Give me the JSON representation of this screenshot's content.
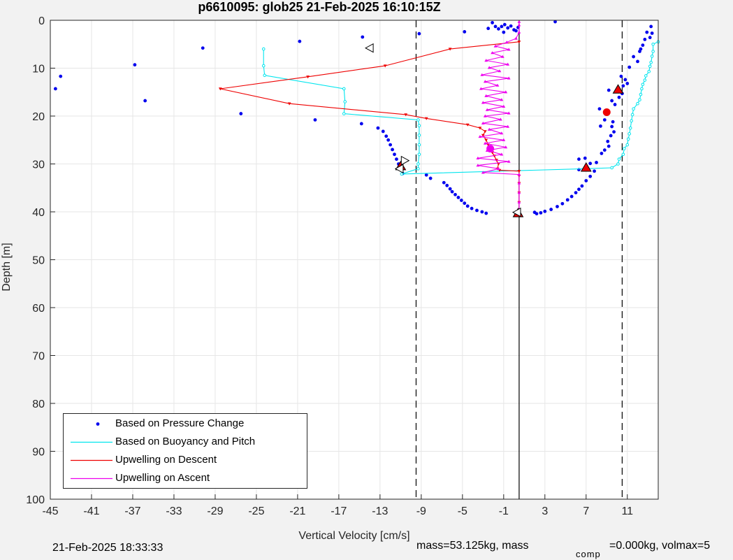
{
  "chart_data": {
    "type": "scatter",
    "title": "p6610095: glob25 21-Feb-2025 16:10:15Z",
    "xlabel": "Vertical Velocity [cm/s]",
    "ylabel": "Depth [m]",
    "xlim": [
      -45,
      14
    ],
    "ylim": [
      0,
      100
    ],
    "y_reversed": true,
    "grid": true,
    "xticks": [
      -45,
      -41,
      -37,
      -33,
      -29,
      -25,
      -21,
      -17,
      -13,
      -9,
      -5,
      -1,
      3,
      7,
      11
    ],
    "yticks": [
      0,
      10,
      20,
      30,
      40,
      50,
      60,
      70,
      80,
      90,
      100
    ],
    "vlines": [
      {
        "x": -9.5,
        "style": "dashed"
      },
      {
        "x": 0.5,
        "style": "solid"
      },
      {
        "x": 10.5,
        "style": "dashed"
      }
    ],
    "legend_position": "bottom-left",
    "series": [
      {
        "name": "Based on Pressure Change",
        "color": "#0000ee",
        "mode": "markers",
        "points": [
          [
            -44.5,
            14.3
          ],
          [
            -44,
            11.7
          ],
          [
            -36.8,
            9.3
          ],
          [
            -35.8,
            16.8
          ],
          [
            -30.2,
            5.8
          ],
          [
            -26.5,
            19.5
          ],
          [
            -20.8,
            4.4
          ],
          [
            -19.3,
            20.8
          ],
          [
            -14.7,
            3.5
          ],
          [
            -14.8,
            21.6
          ],
          [
            -13.2,
            22.5
          ],
          [
            -12.7,
            23.2
          ],
          [
            -12.4,
            24.2
          ],
          [
            -12.2,
            25
          ],
          [
            -12,
            26
          ],
          [
            -11.8,
            27
          ],
          [
            -11.6,
            28
          ],
          [
            -11.4,
            29
          ],
          [
            -11.2,
            30
          ],
          [
            -11,
            31
          ],
          [
            -10.8,
            32
          ],
          [
            -9.2,
            2.8
          ],
          [
            -8.5,
            32.3
          ],
          [
            -8.1,
            33
          ],
          [
            -6.8,
            33.9
          ],
          [
            -6.5,
            34.5
          ],
          [
            -6.2,
            35.2
          ],
          [
            -6,
            35.8
          ],
          [
            -5.7,
            36.4
          ],
          [
            -5.4,
            37
          ],
          [
            -5.1,
            37.6
          ],
          [
            -4.8,
            38.2
          ],
          [
            -4.5,
            38.8
          ],
          [
            -4.1,
            39.3
          ],
          [
            -3.6,
            39.7
          ],
          [
            -3.1,
            40
          ],
          [
            -2.7,
            40.3
          ],
          [
            -4.8,
            2.4
          ],
          [
            -2.5,
            1.7
          ],
          [
            -2.1,
            0.5
          ],
          [
            -1.8,
            1.3
          ],
          [
            -1.5,
            1.8
          ],
          [
            -1.2,
            1.3
          ],
          [
            -0.9,
            0.9
          ],
          [
            -0.6,
            1.6
          ],
          [
            -0.3,
            1.2
          ],
          [
            0,
            2
          ],
          [
            0.2,
            2.2
          ],
          [
            0.4,
            1.5
          ],
          [
            -1,
            2.5
          ],
          [
            2,
            40.1
          ],
          [
            2.2,
            40.4
          ],
          [
            2.6,
            40.2
          ],
          [
            3,
            39.9
          ],
          [
            3.6,
            39.5
          ],
          [
            4.2,
            38.9
          ],
          [
            4.7,
            38.3
          ],
          [
            5.2,
            37.5
          ],
          [
            5.6,
            36.8
          ],
          [
            6,
            36
          ],
          [
            6.3,
            35.3
          ],
          [
            6.6,
            34.6
          ],
          [
            7,
            33.5
          ],
          [
            7.4,
            32.6
          ],
          [
            7.8,
            31.5
          ],
          [
            6.3,
            31.2
          ],
          [
            6.3,
            29
          ],
          [
            6.9,
            28.8
          ],
          [
            7.4,
            29.9
          ],
          [
            8,
            29.7
          ],
          [
            8.5,
            27.8
          ],
          [
            8.8,
            27.1
          ],
          [
            9.2,
            26.3
          ],
          [
            9.1,
            25.3
          ],
          [
            9.4,
            24.1
          ],
          [
            9.7,
            23.3
          ],
          [
            9.5,
            22.2
          ],
          [
            8.4,
            22.1
          ],
          [
            8.8,
            20.8
          ],
          [
            9.6,
            21.2
          ],
          [
            8.3,
            18.5
          ],
          [
            9.8,
            17.6
          ],
          [
            9.5,
            16.8
          ],
          [
            10.2,
            16.1
          ],
          [
            10.5,
            15.3
          ],
          [
            9.2,
            14.6
          ],
          [
            10.6,
            13.7
          ],
          [
            11,
            13.2
          ],
          [
            10.8,
            12.4
          ],
          [
            10.4,
            11.7
          ],
          [
            11.2,
            9.8
          ],
          [
            12,
            8.6
          ],
          [
            11.6,
            7.6
          ],
          [
            12.2,
            6.5
          ],
          [
            12.5,
            5.2
          ],
          [
            12.3,
            6
          ],
          [
            12.7,
            4
          ],
          [
            12.9,
            2.5
          ],
          [
            13.3,
            1.3
          ],
          [
            4,
            0.3
          ],
          [
            13.4,
            2.7
          ],
          [
            13.2,
            3.6
          ]
        ]
      },
      {
        "name": "Based on Buoyancy and Pitch",
        "color": "#00e5ee",
        "mode": "lines+markers",
        "points": [
          [
            -24.3,
            6
          ],
          [
            -24.3,
            9.5
          ],
          [
            -24.2,
            11.5
          ],
          [
            -16.5,
            14.3
          ],
          [
            -16.4,
            17
          ],
          [
            -16.5,
            19.5
          ],
          [
            -9.3,
            20.8
          ],
          [
            -9.2,
            22
          ],
          [
            -9.2,
            24
          ],
          [
            -9.2,
            26
          ],
          [
            -9.2,
            28
          ],
          [
            -9.3,
            30
          ],
          [
            -9.3,
            31
          ],
          [
            -10.9,
            32.1
          ],
          [
            7,
            31
          ],
          [
            9.5,
            30.8
          ],
          [
            10.1,
            30
          ],
          [
            10.2,
            29
          ],
          [
            10.6,
            28
          ],
          [
            10.7,
            26.8
          ],
          [
            11,
            26
          ],
          [
            11.1,
            24.8
          ],
          [
            11.2,
            23.7
          ],
          [
            11.3,
            22.5
          ],
          [
            11.4,
            21
          ],
          [
            11.5,
            19.7
          ],
          [
            11.6,
            18.5
          ],
          [
            12,
            17.4
          ],
          [
            12.2,
            16.6
          ],
          [
            12.3,
            15.5
          ],
          [
            12.4,
            14.3
          ],
          [
            12.5,
            13.4
          ],
          [
            12.7,
            12.5
          ],
          [
            12.8,
            11.6
          ],
          [
            13.1,
            10.7
          ],
          [
            13.2,
            9.6
          ],
          [
            13.3,
            8.8
          ],
          [
            13.4,
            7.5
          ],
          [
            13.5,
            6.5
          ],
          [
            13.5,
            5
          ],
          [
            14,
            4.5
          ]
        ]
      },
      {
        "name": "Upwelling on Descent",
        "color": "#ee0000",
        "mode": "lines+markers",
        "points": [
          [
            0.5,
            4.5
          ],
          [
            -6.2,
            6
          ],
          [
            -12.5,
            9.5
          ],
          [
            -20,
            11.8
          ],
          [
            -28.5,
            14.3
          ],
          [
            -21.8,
            17.4
          ],
          [
            -10.5,
            19.7
          ],
          [
            -8.5,
            20.5
          ],
          [
            -4.5,
            21.8
          ],
          [
            -3.3,
            22.5
          ],
          [
            -2.8,
            23.2
          ],
          [
            -3,
            24
          ],
          [
            -2.7,
            25
          ],
          [
            -2.5,
            26
          ],
          [
            -2.3,
            26.8
          ],
          [
            -2.1,
            27.6
          ],
          [
            -1.9,
            28.3
          ],
          [
            -1.7,
            29.2
          ],
          [
            -1.5,
            30
          ],
          [
            -1.6,
            31
          ],
          [
            -1.4,
            31.3
          ],
          [
            0.5,
            31.5
          ],
          [
            0.5,
            32.5
          ],
          [
            0.5,
            34
          ],
          [
            0.5,
            36
          ],
          [
            0.5,
            38
          ],
          [
            0.5,
            40
          ]
        ]
      },
      {
        "name": "Upwelling on Ascent",
        "color": "#ee00ee",
        "mode": "lines+markers",
        "points": [
          [
            0.5,
            40.5
          ],
          [
            0.5,
            38
          ],
          [
            0.5,
            36
          ],
          [
            0.5,
            34
          ],
          [
            0.5,
            32.2
          ],
          [
            -3,
            31.8
          ],
          [
            -1.5,
            31
          ],
          [
            -3.5,
            30.3
          ],
          [
            -0.5,
            29.5
          ],
          [
            -3.5,
            28.8
          ],
          [
            -1.2,
            28
          ],
          [
            -2.6,
            27.2
          ],
          [
            -0.8,
            26.5
          ],
          [
            -2.8,
            25.7
          ],
          [
            -1,
            25
          ],
          [
            -3.3,
            24.3
          ],
          [
            -1.2,
            23.6
          ],
          [
            -2.4,
            22.8
          ],
          [
            -0.6,
            22.2
          ],
          [
            -3,
            21.5
          ],
          [
            -1.3,
            20.7
          ],
          [
            -2.8,
            20
          ],
          [
            -0.5,
            19.4
          ],
          [
            -2.6,
            18.7
          ],
          [
            -1,
            18
          ],
          [
            -3,
            17.2
          ],
          [
            -1.2,
            16.6
          ],
          [
            -2.7,
            15.8
          ],
          [
            -0.8,
            15
          ],
          [
            -3.2,
            14.3
          ],
          [
            -1.6,
            13.6
          ],
          [
            -2.8,
            12.8
          ],
          [
            -0.5,
            12.1
          ],
          [
            -3.1,
            11.4
          ],
          [
            -1.4,
            10.6
          ],
          [
            -2.4,
            9.9
          ],
          [
            -0.6,
            9.2
          ],
          [
            -2.7,
            8.4
          ],
          [
            -1.1,
            7.6
          ],
          [
            -2.1,
            6.8
          ],
          [
            -0.5,
            6.1
          ],
          [
            -1.8,
            5.4
          ],
          [
            -0.7,
            4.6
          ],
          [
            0.2,
            3.8
          ],
          [
            0.5,
            2.5
          ],
          [
            0.5,
            1
          ],
          [
            0.5,
            0.3
          ]
        ]
      }
    ],
    "markers": [
      {
        "x": -11,
        "y": 30.5,
        "shape": "triangle-up",
        "color": "#ee0000"
      },
      {
        "x": 7,
        "y": 30.8,
        "shape": "triangle-up",
        "color": "#ee0000"
      },
      {
        "x": 10.1,
        "y": 14.5,
        "shape": "triangle-up",
        "color": "#ee0000"
      },
      {
        "x": 0.4,
        "y": 40.3,
        "shape": "triangle-up",
        "color": "#ee0000"
      },
      {
        "x": 9,
        "y": 19.2,
        "shape": "circle",
        "color": "#ee0000"
      },
      {
        "x": -2.3,
        "y": 26.8,
        "shape": "circle",
        "color": "#ee00ee"
      },
      {
        "x": -14,
        "y": 5.8,
        "shape": "triangle-left",
        "color": "#ffffff"
      },
      {
        "x": -10.6,
        "y": 29.3,
        "shape": "triangle-right",
        "color": "#ffffff"
      },
      {
        "x": -11.1,
        "y": 31,
        "shape": "triangle-left",
        "color": "#ffffff"
      },
      {
        "x": 0.3,
        "y": 40.1,
        "shape": "triangle-left",
        "color": "#ffffff"
      }
    ]
  },
  "footer": {
    "timestamp": "21-Feb-2025 18:33:33",
    "mass_label": "mass=53.125kg, mass",
    "comp_subscript": "comp",
    "volmax_label": "=0.000kg, volmax=5"
  }
}
